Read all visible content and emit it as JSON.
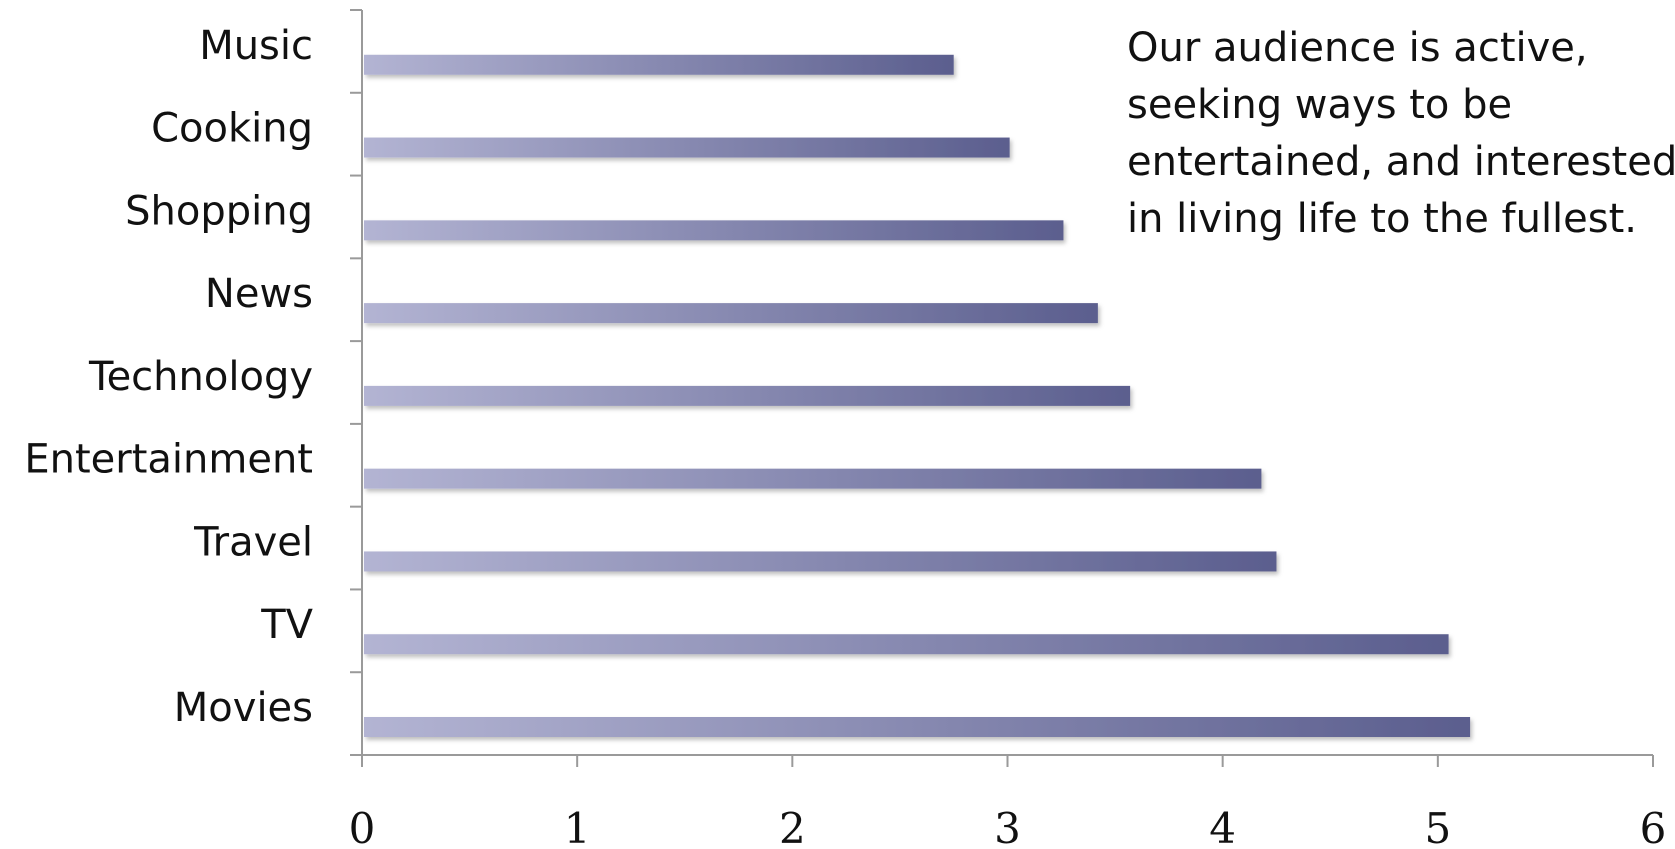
{
  "chart_data": {
    "type": "bar",
    "orientation": "horizontal",
    "categories": [
      "Movies",
      "TV",
      "Travel",
      "Entertainment",
      "Technology",
      "News",
      "Shopping",
      "Cooking",
      "Music"
    ],
    "values": [
      5.15,
      5.05,
      4.25,
      4.18,
      3.57,
      3.42,
      3.26,
      3.01,
      2.75
    ],
    "xlim": [
      0,
      6
    ],
    "xticks": [
      "0",
      "1",
      "2",
      "3",
      "4",
      "5",
      "6"
    ],
    "title": "",
    "xlabel": "",
    "ylabel": "",
    "grid": false,
    "legend": "none",
    "bar_color_start": "#b3b4d3",
    "bar_color_end": "#5b5e8e"
  },
  "annotation": {
    "lines": [
      "Our audience is active,",
      "seeking ways to be",
      "entertained, and interested",
      "in living life to the fullest."
    ]
  }
}
